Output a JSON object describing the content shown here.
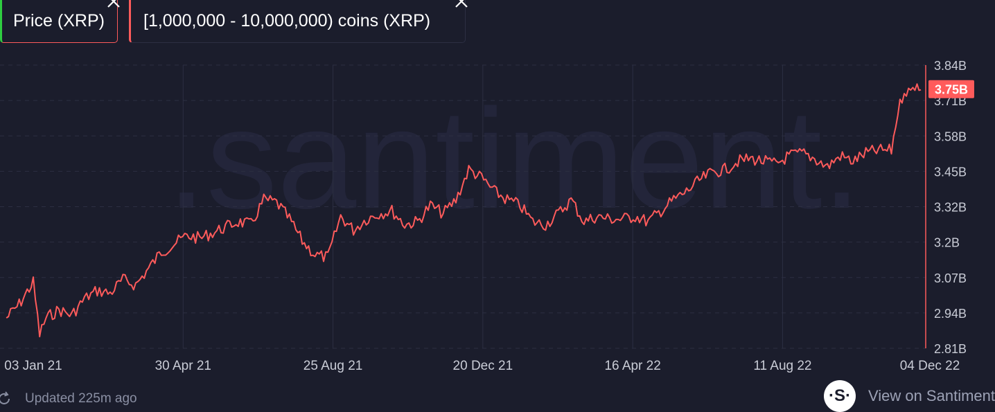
{
  "legend": {
    "price_label": "Price (XRP)",
    "holders_label": "[1,000,000 - 10,000,000) coins (XRP)"
  },
  "watermark": ".santiment.",
  "footer": {
    "updated_text": "Updated 225m ago",
    "view_link": "View on Santiment",
    "logo_glyph": "·S·"
  },
  "colors": {
    "background": "#1b1d2c",
    "series": "#ff5b5b",
    "price": "#2ecc40",
    "grid": "#2c2f42",
    "tick_text": "#c9ccd6"
  },
  "chart_data": {
    "type": "line",
    "title": "",
    "xlabel": "",
    "ylabel": "",
    "x_ticks": [
      "03 Jan 21",
      "30 Apr 21",
      "25 Aug 21",
      "20 Dec 21",
      "16 Apr 22",
      "11 Aug 22",
      "04 Dec 22"
    ],
    "y_ticks": [
      "3.84B",
      "3.71B",
      "3.58B",
      "3.45B",
      "3.32B",
      "3.2B",
      "3.07B",
      "2.94B",
      "2.81B"
    ],
    "ylim": [
      2.81,
      3.84
    ],
    "y_unit": "B coins",
    "current_value_label": "3.75B",
    "grid": true,
    "series": [
      {
        "name": "[1,000,000 - 10,000,000) coins (XRP)",
        "x": [
          "2020-12-13",
          "2020-12-23",
          "2021-01-03",
          "2021-01-08",
          "2021-01-13",
          "2021-01-23",
          "2021-02-02",
          "2021-02-12",
          "2021-02-22",
          "2021-03-04",
          "2021-03-14",
          "2021-03-24",
          "2021-04-03",
          "2021-04-13",
          "2021-04-23",
          "2021-05-03",
          "2021-05-13",
          "2021-05-23",
          "2021-06-02",
          "2021-06-12",
          "2021-06-22",
          "2021-07-02",
          "2021-07-12",
          "2021-07-22",
          "2021-08-01",
          "2021-08-11",
          "2021-08-21",
          "2021-08-31",
          "2021-09-10",
          "2021-09-20",
          "2021-09-30",
          "2021-10-10",
          "2021-10-20",
          "2021-10-30",
          "2021-11-09",
          "2021-11-19",
          "2021-11-29",
          "2021-12-09",
          "2021-12-19",
          "2021-12-29",
          "2022-01-08",
          "2022-01-18",
          "2022-01-28",
          "2022-02-07",
          "2022-02-17",
          "2022-02-27",
          "2022-03-09",
          "2022-03-19",
          "2022-03-29",
          "2022-04-08",
          "2022-04-18",
          "2022-04-28",
          "2022-05-08",
          "2022-05-18",
          "2022-05-28",
          "2022-06-07",
          "2022-06-17",
          "2022-06-27",
          "2022-07-07",
          "2022-07-17",
          "2022-07-27",
          "2022-08-06",
          "2022-08-16",
          "2022-08-26",
          "2022-09-05",
          "2022-09-15",
          "2022-09-25",
          "2022-10-05",
          "2022-10-15",
          "2022-10-25",
          "2022-11-04",
          "2022-11-09",
          "2022-11-14",
          "2022-11-19",
          "2022-11-24",
          "2022-11-27"
        ],
        "values": [
          2.92,
          2.97,
          3.05,
          2.86,
          2.92,
          2.95,
          2.93,
          2.99,
          3.02,
          3.01,
          3.06,
          3.04,
          3.1,
          3.16,
          3.19,
          3.22,
          3.21,
          3.23,
          3.25,
          3.27,
          3.26,
          3.35,
          3.34,
          3.28,
          3.2,
          3.15,
          3.14,
          3.29,
          3.24,
          3.28,
          3.3,
          3.31,
          3.26,
          3.27,
          3.33,
          3.3,
          3.35,
          3.46,
          3.43,
          3.38,
          3.35,
          3.33,
          3.27,
          3.26,
          3.3,
          3.35,
          3.27,
          3.29,
          3.28,
          3.28,
          3.29,
          3.27,
          3.31,
          3.35,
          3.38,
          3.42,
          3.45,
          3.46,
          3.49,
          3.5,
          3.49,
          3.48,
          3.51,
          3.52,
          3.5,
          3.47,
          3.51,
          3.49,
          3.52,
          3.53,
          3.53,
          3.67,
          3.75,
          3.74,
          3.78,
          3.75
        ]
      }
    ]
  }
}
